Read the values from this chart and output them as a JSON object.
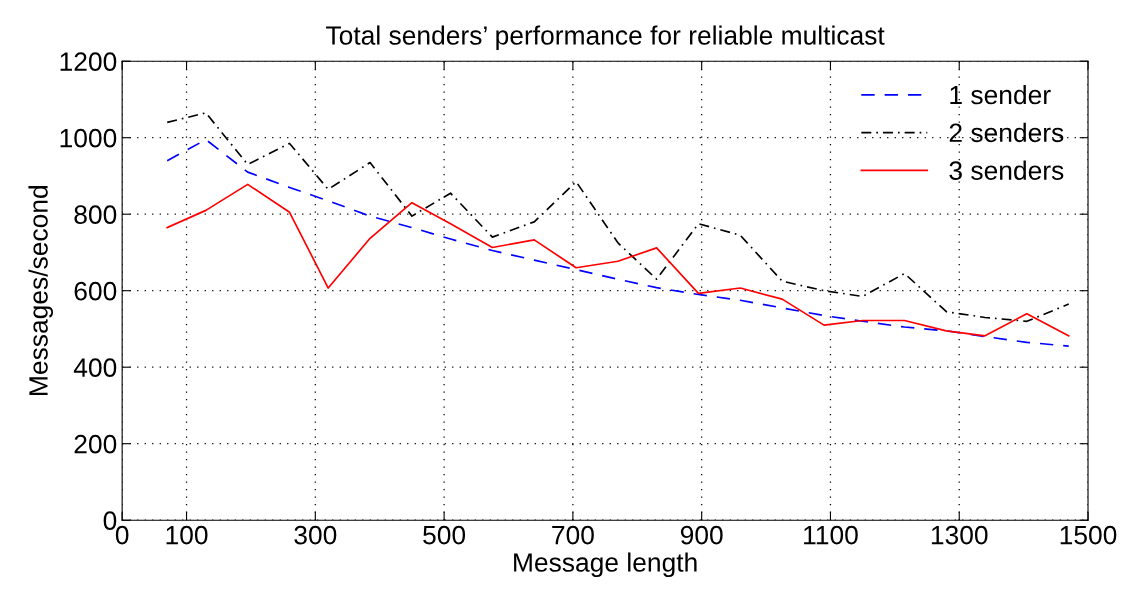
{
  "chart_data": {
    "type": "line",
    "title": "Total senders’ performance for reliable multicast",
    "xlabel": "Message length",
    "ylabel": "Messages/second",
    "x": [
      70,
      130,
      195,
      260,
      320,
      385,
      450,
      510,
      575,
      640,
      705,
      770,
      830,
      895,
      960,
      1025,
      1090,
      1150,
      1215,
      1280,
      1340,
      1405,
      1470
    ],
    "series": [
      {
        "name": "1 sender",
        "color": "#0000ff",
        "line_style": "dashed",
        "values": [
          940,
          995,
          910,
          870,
          835,
          795,
          765,
          735,
          705,
          680,
          655,
          630,
          608,
          590,
          575,
          555,
          535,
          520,
          505,
          495,
          480,
          465,
          455
        ]
      },
      {
        "name": "2 senders",
        "color": "#000000",
        "line_style": "dashdot",
        "values": [
          1040,
          1065,
          930,
          985,
          865,
          935,
          795,
          855,
          740,
          780,
          885,
          725,
          630,
          775,
          745,
          625,
          600,
          585,
          645,
          545,
          530,
          520,
          565
        ]
      },
      {
        "name": "3 senders",
        "color": "#ff0000",
        "line_style": "solid",
        "values": [
          765,
          810,
          878,
          805,
          607,
          737,
          830,
          775,
          713,
          733,
          660,
          677,
          712,
          593,
          607,
          578,
          510,
          522,
          522,
          495,
          482,
          540,
          482
        ]
      }
    ],
    "xlim": [
      0,
      1500
    ],
    "xticks": [
      0,
      100,
      300,
      500,
      700,
      900,
      1100,
      1300,
      1500
    ],
    "ylim": [
      0,
      1200
    ],
    "yticks": [
      0,
      200,
      400,
      600,
      800,
      1000,
      1200
    ],
    "grid": true,
    "legend": "top right",
    "marker": "none"
  }
}
